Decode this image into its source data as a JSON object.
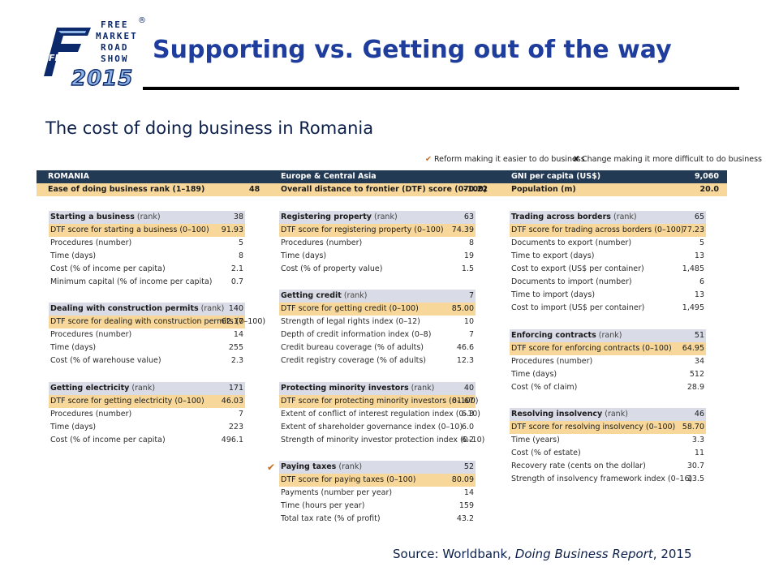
{
  "header": {
    "logo": {
      "lines": [
        "FREE",
        "MARKET",
        "ROAD",
        "SHOW"
      ],
      "badge": "FMRS",
      "year": "2015",
      "reg": "®"
    },
    "title": "Supporting vs. Getting out of the way"
  },
  "subtitle": "The cost of doing business in Romania",
  "legend": {
    "reform": "Reform making it easier to do business",
    "negative": "Change making it more difficult to do business"
  },
  "banner": {
    "country": "ROMANIA",
    "region": "Europe & Central Asia",
    "gni_label": "GNI per capita (US$)",
    "gni_value": "9,060",
    "rank_label": "Ease of doing business rank (1–189)",
    "rank_value": "48",
    "dtf_label": "Overall distance to frontier (DTF) score (0–100)",
    "dtf_value": "70.22",
    "pop_label": "Population (m)",
    "pop_value": "20.0"
  },
  "blocks": [
    {
      "id": "starting",
      "title": "Starting a business",
      "unit": "(rank)",
      "rank": "38",
      "dtf_label": "DTF score for starting a business (0–100)",
      "dtf": "91.93",
      "rows": [
        {
          "label": "Procedures (number)",
          "value": "5"
        },
        {
          "label": "Time (days)",
          "value": "8"
        },
        {
          "label": "Cost (% of income per capita)",
          "value": "2.1"
        },
        {
          "label": "Minimum capital (% of income per capita)",
          "value": "0.7"
        }
      ]
    },
    {
      "id": "construction",
      "title": "Dealing with construction permits",
      "unit": "(rank)",
      "rank": "140",
      "dtf_label": "DTF score for dealing with construction permits (0–100)",
      "dtf": "62.17",
      "rows": [
        {
          "label": "Procedures (number)",
          "value": "14"
        },
        {
          "label": "Time (days)",
          "value": "255"
        },
        {
          "label": "Cost (% of warehouse value)",
          "value": "2.3"
        }
      ]
    },
    {
      "id": "electricity",
      "title": "Getting electricity",
      "unit": "(rank)",
      "rank": "171",
      "dtf_label": "DTF score for getting electricity (0–100)",
      "dtf": "46.03",
      "rows": [
        {
          "label": "Procedures (number)",
          "value": "7"
        },
        {
          "label": "Time (days)",
          "value": "223"
        },
        {
          "label": "Cost (% of income per capita)",
          "value": "496.1"
        }
      ]
    },
    {
      "id": "property",
      "title": "Registering property",
      "unit": "(rank)",
      "rank": "63",
      "dtf_label": "DTF score for registering property (0–100)",
      "dtf": "74.39",
      "rows": [
        {
          "label": "Procedures (number)",
          "value": "8"
        },
        {
          "label": "Time (days)",
          "value": "19"
        },
        {
          "label": "Cost (% of property value)",
          "value": "1.5"
        }
      ]
    },
    {
      "id": "credit",
      "title": "Getting credit",
      "unit": "(rank)",
      "rank": "7",
      "dtf_label": "DTF score for getting credit (0–100)",
      "dtf": "85.00",
      "rows": [
        {
          "label": "Strength of legal rights index (0–12)",
          "value": "10"
        },
        {
          "label": "Depth of credit information index (0–8)",
          "value": "7"
        },
        {
          "label": "Credit bureau coverage (% of adults)",
          "value": "46.6"
        },
        {
          "label": "Credit registry coverage (% of adults)",
          "value": "12.3"
        }
      ]
    },
    {
      "id": "investors",
      "title": "Protecting minority investors",
      "unit": "(rank)",
      "rank": "40",
      "dtf_label": "DTF score for protecting minority investors (0–100)",
      "dtf": "61.67",
      "rows": [
        {
          "label": "Extent of conflict of interest regulation index (0–10)",
          "value": "6.3"
        },
        {
          "label": "Extent of shareholder governance index (0–10)",
          "value": "6.0"
        },
        {
          "label": "Strength of minority investor protection index (0–10)",
          "value": "6.2"
        }
      ]
    },
    {
      "id": "taxes",
      "title": "Paying taxes",
      "unit": "(rank)",
      "rank": "52",
      "dtf_label": "DTF score for paying taxes (0–100)",
      "dtf": "80.09",
      "rows": [
        {
          "label": "Payments (number per year)",
          "value": "14"
        },
        {
          "label": "Time (hours per year)",
          "value": "159"
        },
        {
          "label": "Total tax rate (% of profit)",
          "value": "43.2"
        }
      ]
    },
    {
      "id": "trading",
      "title": "Trading across borders",
      "unit": "(rank)",
      "rank": "65",
      "dtf_label": "DTF score for trading across borders (0–100)",
      "dtf": "77.23",
      "rows": [
        {
          "label": "Documents to export (number)",
          "value": "5"
        },
        {
          "label": "Time to export (days)",
          "value": "13"
        },
        {
          "label": "Cost to export (US$ per container)",
          "value": "1,485"
        },
        {
          "label": "Documents to import (number)",
          "value": "6"
        },
        {
          "label": "Time to import (days)",
          "value": "13"
        },
        {
          "label": "Cost to import (US$ per container)",
          "value": "1,495"
        }
      ]
    },
    {
      "id": "contracts",
      "title": "Enforcing contracts",
      "unit": "(rank)",
      "rank": "51",
      "dtf_label": "DTF score for enforcing contracts (0–100)",
      "dtf": "64.95",
      "rows": [
        {
          "label": "Procedures (number)",
          "value": "34"
        },
        {
          "label": "Time (days)",
          "value": "512"
        },
        {
          "label": "Cost (% of claim)",
          "value": "28.9"
        }
      ]
    },
    {
      "id": "insolvency",
      "title": "Resolving insolvency",
      "unit": "(rank)",
      "rank": "46",
      "dtf_label": "DTF score for resolving insolvency (0–100)",
      "dtf": "58.70",
      "rows": [
        {
          "label": "Time (years)",
          "value": "3.3"
        },
        {
          "label": "Cost (% of estate)",
          "value": "11"
        },
        {
          "label": "Recovery rate (cents on the dollar)",
          "value": "30.7"
        },
        {
          "label": "Strength of insolvency framework index (0–16)",
          "value": "13.5"
        }
      ]
    }
  ],
  "source": {
    "prefix": "Source: Worldbank, ",
    "report": "Doing Business Report",
    "suffix": ", 2015"
  }
}
